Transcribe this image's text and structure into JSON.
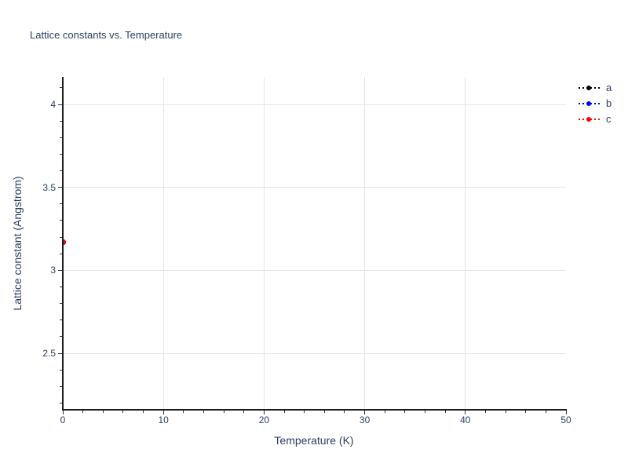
{
  "chart_data": {
    "type": "scatter",
    "mode": "dashed-lines-with-markers",
    "title": "Lattice constants vs. Temperature",
    "xlabel": "Temperature (K)",
    "ylabel": "Lattice constant (Angstrom)",
    "x": [
      0
    ],
    "series": [
      {
        "name": "a",
        "color": "#000000",
        "values": [
          3.17
        ]
      },
      {
        "name": "b",
        "color": "#0000ff",
        "values": [
          3.17
        ]
      },
      {
        "name": "c",
        "color": "#ff0000",
        "values": [
          3.17
        ]
      }
    ],
    "xlim": [
      0,
      50
    ],
    "ylim": [
      2.164,
      4.166
    ],
    "x_major_ticks": [
      0,
      10,
      20,
      30,
      40,
      50
    ],
    "x_minor_step": 2,
    "y_major_ticks": [
      2.5,
      3,
      3.5,
      4
    ],
    "y_minor_range": [
      2.2,
      4.1
    ],
    "y_minor_step": 0.1,
    "grid": {
      "x": [
        10,
        20,
        30,
        40
      ],
      "y": [
        2.5,
        3,
        3.5,
        4
      ],
      "visible": true
    },
    "legend": {
      "position": "top-right-outside",
      "entries": [
        "a",
        "b",
        "c"
      ]
    },
    "colors": {
      "text": "#2a3f5f",
      "axis_line": "#1c1c1c",
      "tick": "#333333",
      "grid": "#e5e5e5",
      "background": "#ffffff",
      "marker_a": "#000000",
      "marker_b": "#0000ff",
      "marker_c": "#ff0000"
    }
  }
}
